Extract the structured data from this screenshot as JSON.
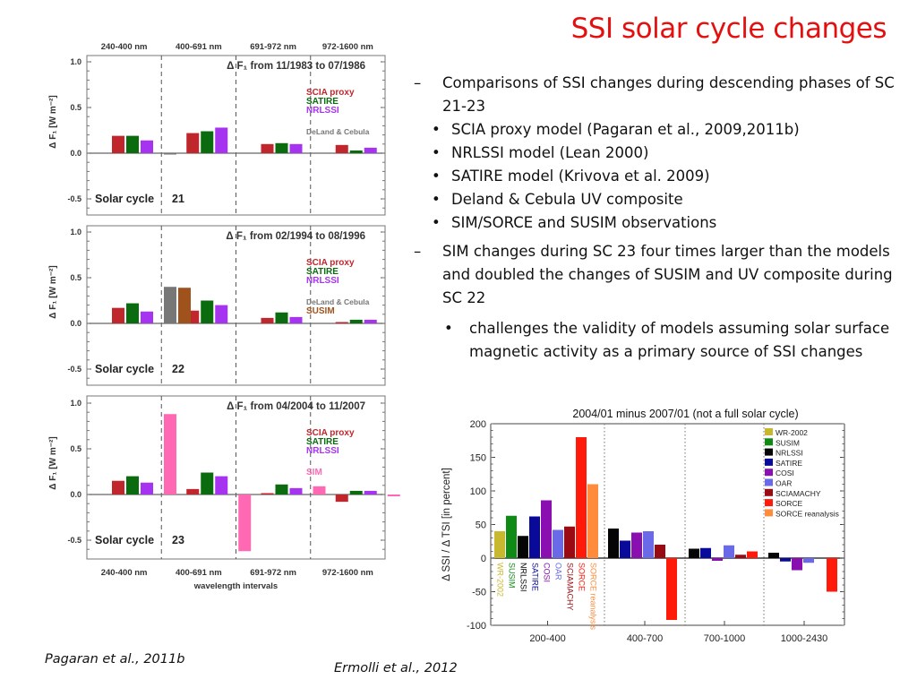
{
  "slide": {
    "title": "SSI solar cycle changes",
    "bullets": [
      {
        "level": 1,
        "marker": "–",
        "text": "Comparisons of SSI changes during descending phases of SC 21-23"
      },
      {
        "level": 2,
        "marker": "•",
        "text": "SCIA proxy model (Pagaran et al., 2009,2011b)"
      },
      {
        "level": 2,
        "marker": "•",
        "text": "NRLSSI model (Lean 2000)"
      },
      {
        "level": 2,
        "marker": "•",
        "text": "SATIRE model (Krivova et al. 2009)"
      },
      {
        "level": 2,
        "marker": "•",
        "text": "Deland & Cebula UV composite"
      },
      {
        "level": 2,
        "marker": "•",
        "text": "SIM/SORCE and SUSIM observations"
      },
      {
        "level": 1,
        "marker": "–",
        "text": "SIM changes during SC 23 four times larger than the models and doubled the changes of SUSIM and UV composite during SC 22"
      },
      {
        "level": 3,
        "marker": "•",
        "text": "challenges the validity of models assuming solar surface magnetic activity as a primary source of SSI changes"
      }
    ],
    "citations": {
      "left": "Pagaran et al., 2011b",
      "right": "Ermolli et al., 2012"
    }
  },
  "chart_data": [
    {
      "type": "bar",
      "title": "",
      "xlabel": "wavelength intervals",
      "ylabel": "Δ F_λ [W m⁻²]",
      "ylim": [
        -0.7,
        1.05
      ],
      "yticks": [
        "1.0",
        "0.5",
        "0.0",
        "-0.5"
      ],
      "categories": [
        "240-400 nm",
        "400-691 nm",
        "691-972 nm",
        "972-1600 nm"
      ],
      "colors": {
        "SCIA proxy": "#c0272d",
        "SATIRE": "#0a6b0f",
        "NRLSSI": "#a633f0",
        "DeLand & Cebula": "#777777",
        "SUSIM": "#a0521d",
        "SIM": "#ff69b4"
      },
      "panels": [
        {
          "annotation": "Δ F_λ from 11/1983 to 07/1986",
          "cycle_label": "Solar cycle",
          "cycle_number": "21",
          "legend": [
            "SCIA proxy",
            "SATIRE",
            "NRLSSI",
            "DeLand & Cebula"
          ],
          "series": [
            {
              "name": "SCIA proxy",
              "values": [
                0.19,
                0.22,
                0.1,
                0.09
              ]
            },
            {
              "name": "SATIRE",
              "values": [
                0.19,
                0.24,
                0.11,
                0.03
              ]
            },
            {
              "name": "NRLSSI",
              "values": [
                0.14,
                0.28,
                0.1,
                0.06
              ]
            },
            {
              "name": "DeLand & Cebula",
              "values": [
                -0.01,
                null,
                null,
                null
              ]
            }
          ]
        },
        {
          "annotation": "Δ F_λ from 02/1994 to 08/1996",
          "cycle_label": "Solar cycle",
          "cycle_number": "22",
          "legend": [
            "SCIA proxy",
            "SATIRE",
            "NRLSSI",
            "DeLand & Cebula",
            "SUSIM"
          ],
          "series": [
            {
              "name": "SCIA proxy",
              "values": [
                0.17,
                0.14,
                0.06,
                0.01
              ]
            },
            {
              "name": "SATIRE",
              "values": [
                0.22,
                0.25,
                0.12,
                0.04
              ]
            },
            {
              "name": "NRLSSI",
              "values": [
                0.13,
                0.2,
                0.07,
                0.04
              ]
            },
            {
              "name": "DeLand & Cebula",
              "values": [
                0.4,
                null,
                null,
                null
              ]
            },
            {
              "name": "SUSIM",
              "values": [
                0.39,
                null,
                null,
                null
              ]
            }
          ]
        },
        {
          "annotation": "Δ F_λ from 04/2004 to 11/2007",
          "cycle_label": "Solar cycle",
          "cycle_number": "23",
          "legend": [
            "SCIA proxy",
            "SATIRE",
            "NRLSSI",
            "SIM"
          ],
          "series": [
            {
              "name": "SCIA proxy",
              "values": [
                0.15,
                0.06,
                0.0,
                -0.08
              ]
            },
            {
              "name": "SATIRE",
              "values": [
                0.2,
                0.24,
                0.11,
                0.04
              ]
            },
            {
              "name": "NRLSSI",
              "values": [
                0.13,
                0.2,
                0.07,
                0.04
              ]
            },
            {
              "name": "SIM",
              "values": [
                0.88,
                -0.62,
                0.09,
                -0.02
              ]
            }
          ]
        }
      ]
    },
    {
      "type": "bar",
      "title": "2004/01 minus 2007/01  (not a full solar cycle)",
      "xlabel": "",
      "ylabel": "Δ SSI  /  Δ TSI  [in percent]",
      "ylim": [
        -100,
        200
      ],
      "yticks": [
        "200",
        "150",
        "100",
        "50",
        "0",
        "-50",
        "-100"
      ],
      "categories": [
        "200-400",
        "400-700",
        "700-1000",
        "1000-2430"
      ],
      "legend_position": "top-right",
      "series": [
        {
          "name": "WR-2002",
          "color": "#c8b830",
          "values": [
            40,
            null,
            null,
            null
          ]
        },
        {
          "name": "SUSIM",
          "color": "#0f8a14",
          "values": [
            63,
            null,
            null,
            null
          ]
        },
        {
          "name": "NRLSSI",
          "color": "#050505",
          "values": [
            33,
            44,
            14,
            8
          ]
        },
        {
          "name": "SATIRE",
          "color": "#0a0a9a",
          "values": [
            62,
            26,
            15,
            -5
          ]
        },
        {
          "name": "COSI",
          "color": "#8a0fb0",
          "values": [
            86,
            38,
            -4,
            -18
          ]
        },
        {
          "name": "OAR",
          "color": "#6a6ae8",
          "values": [
            42,
            40,
            19,
            -7
          ]
        },
        {
          "name": "SCIAMACHY",
          "color": "#9a0a12",
          "values": [
            47,
            20,
            5,
            null
          ]
        },
        {
          "name": "SORCE",
          "color": "#ff1a0a",
          "values": [
            180,
            -92,
            10,
            -50
          ]
        },
        {
          "name": "SORCE reanalysis",
          "color": "#ff8c3c",
          "values": [
            110,
            null,
            null,
            null
          ]
        }
      ]
    }
  ]
}
